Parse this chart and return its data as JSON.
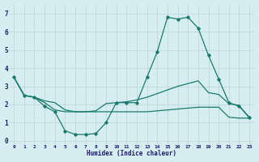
{
  "xlabel": "Humidex (Indice chaleur)",
  "bg_color": "#d6eef2",
  "grid_color": "#c0d8dc",
  "line_color": "#1a7a6e",
  "x_ticks": [
    0,
    1,
    2,
    3,
    4,
    5,
    6,
    7,
    8,
    9,
    10,
    11,
    12,
    13,
    14,
    15,
    16,
    17,
    18,
    19,
    20,
    21,
    22,
    23
  ],
  "y_ticks": [
    0,
    1,
    2,
    3,
    4,
    5,
    6,
    7
  ],
  "ylim": [
    -0.2,
    7.5
  ],
  "xlim": [
    -0.5,
    23.5
  ],
  "line1_x": [
    0,
    1,
    2,
    3,
    4,
    5,
    6,
    7,
    8,
    9,
    10,
    11,
    12,
    13,
    14,
    15,
    16,
    17,
    18,
    19,
    20,
    21,
    22,
    23
  ],
  "line1_y": [
    3.5,
    2.5,
    2.4,
    1.9,
    1.6,
    0.55,
    0.35,
    0.35,
    0.4,
    1.0,
    2.1,
    2.1,
    2.1,
    3.5,
    4.9,
    6.8,
    6.7,
    6.8,
    6.2,
    4.7,
    3.4,
    2.1,
    1.9,
    1.3
  ],
  "line2_x": [
    0,
    1,
    2,
    3,
    4,
    5,
    6,
    7,
    8,
    9,
    10,
    11,
    12,
    13,
    14,
    15,
    16,
    17,
    18,
    19,
    20,
    21,
    22,
    23
  ],
  "line2_y": [
    3.5,
    2.5,
    2.4,
    2.2,
    2.1,
    1.7,
    1.6,
    1.6,
    1.65,
    2.05,
    2.1,
    2.15,
    2.25,
    2.4,
    2.6,
    2.8,
    3.0,
    3.15,
    3.3,
    2.65,
    2.55,
    2.05,
    1.95,
    1.25
  ],
  "line3_x": [
    0,
    1,
    2,
    3,
    4,
    5,
    6,
    7,
    8,
    9,
    10,
    11,
    12,
    13,
    14,
    15,
    16,
    17,
    18,
    19,
    20,
    21,
    22,
    23
  ],
  "line3_y": [
    3.5,
    2.5,
    2.4,
    2.1,
    1.7,
    1.6,
    1.6,
    1.6,
    1.6,
    1.6,
    1.6,
    1.6,
    1.6,
    1.6,
    1.65,
    1.7,
    1.75,
    1.8,
    1.85,
    1.85,
    1.85,
    1.3,
    1.25,
    1.25
  ]
}
